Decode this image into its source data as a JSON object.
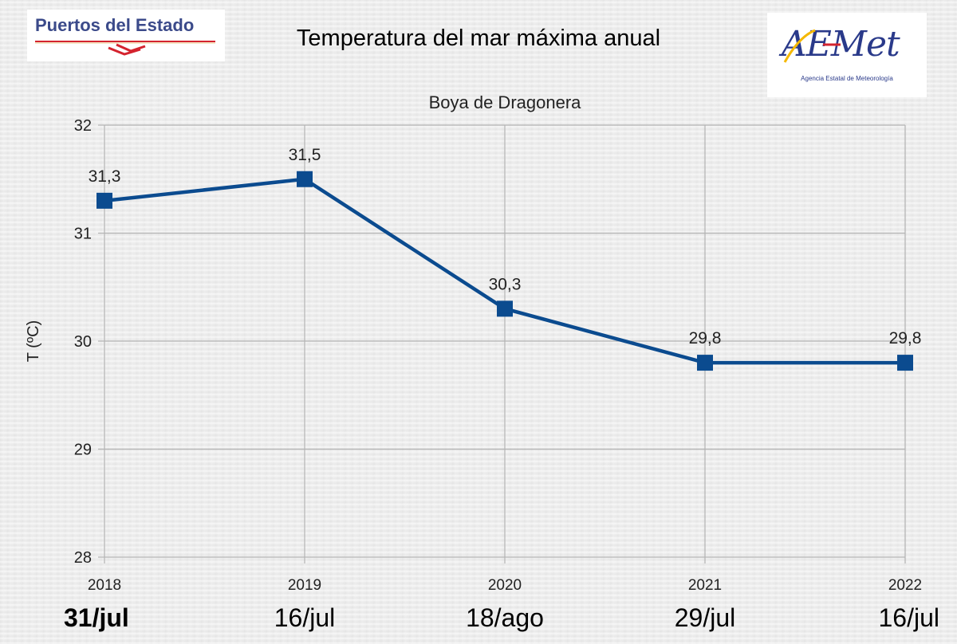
{
  "header": {
    "title": "Temperatura del mar máxima anual",
    "logo_left_text": "Puertos del Estado",
    "logo_right_text": "AEMet",
    "logo_right_tagline": "Agencia Estatal de Meteorología"
  },
  "colors": {
    "series": "#0b4b8f",
    "grid": "#b3b3b3",
    "logo_red": "#d4232e",
    "logo_blue": "#2a3a8a",
    "logo_yellow": "#f5b800"
  },
  "chart_data": {
    "type": "line",
    "title": "Boya de Dragonera",
    "xlabel": "",
    "ylabel": "T (ºC)",
    "categories": [
      "2018",
      "2019",
      "2020",
      "2021",
      "2022"
    ],
    "date_labels": [
      "31/jul",
      "16/jul",
      "18/ago",
      "29/jul",
      "16/jul"
    ],
    "values": [
      31.3,
      31.5,
      30.3,
      29.8,
      29.8
    ],
    "value_labels": [
      "31,3",
      "31,5",
      "30,3",
      "29,8",
      "29,8"
    ],
    "y_ticks": [
      "28",
      "29",
      "30",
      "31",
      "32"
    ],
    "ylim": [
      28,
      32
    ],
    "grid": true,
    "legend": "none",
    "marker": "square"
  }
}
